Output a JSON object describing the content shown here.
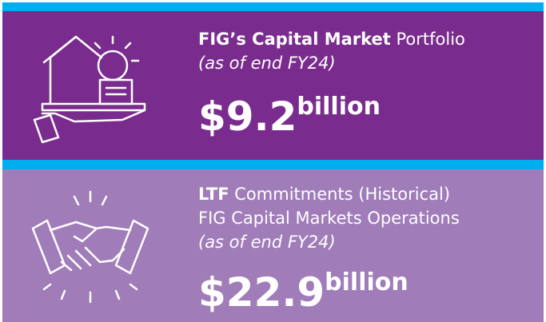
{
  "panels": [
    {
      "title_bold": "FIG’s Capital Market",
      "title_rest": "Portfolio",
      "subtitle": "(as of end FY24)",
      "amount": "$9.2",
      "unit": "billion"
    },
    {
      "title_bold": "LTF",
      "title_rest": "Commitments (Historical)",
      "title_line2": "FIG Capital Markets Operations",
      "subtitle": "(as of end FY24)",
      "amount": "$22.9",
      "unit": "billion"
    }
  ]
}
